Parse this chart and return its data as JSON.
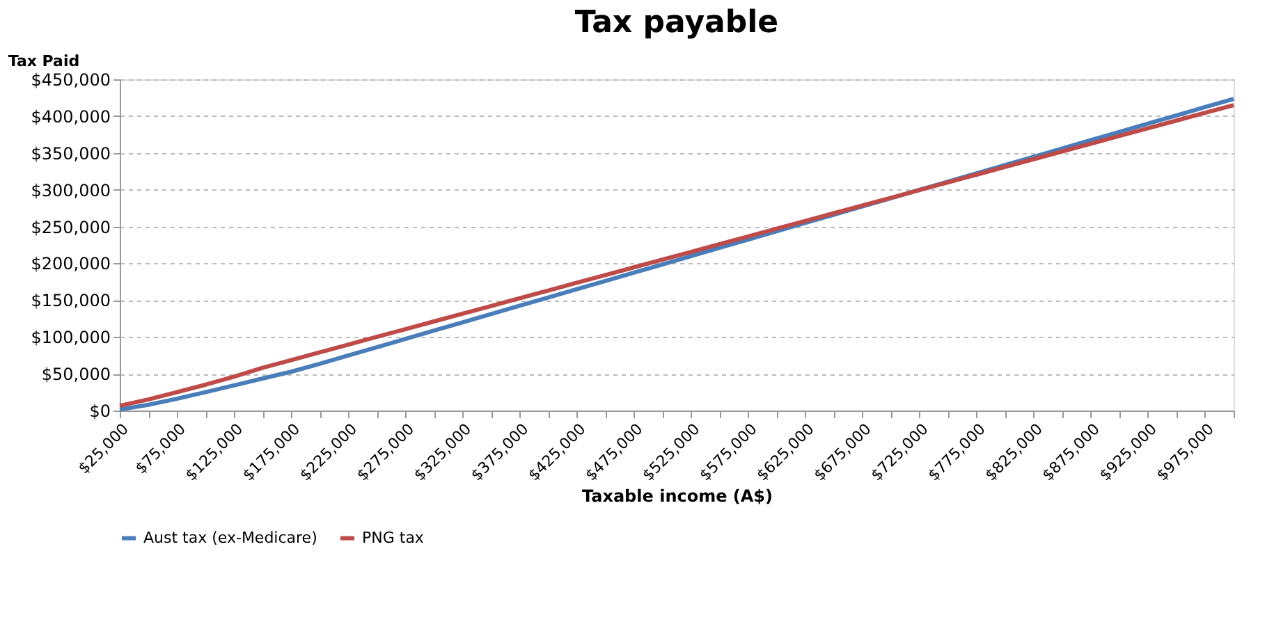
{
  "chart_data": {
    "type": "line",
    "title": "Tax payable",
    "xlabel": "Taxable income (A$)",
    "ylabel": "Tax Paid",
    "categories": [
      "$25,000",
      null,
      "$75,000",
      null,
      "$125,000",
      null,
      "$175,000",
      null,
      "$225,000",
      null,
      "$275,000",
      null,
      "$325,000",
      null,
      "$375,000",
      null,
      "$425,000",
      null,
      "$475,000",
      null,
      "$525,000",
      null,
      "$575,000",
      null,
      "$625,000",
      null,
      "$675,000",
      null,
      "$725,000",
      null,
      "$775,000",
      null,
      "$825,000",
      null,
      "$875,000",
      null,
      "$925,000",
      null,
      "$975,000",
      null
    ],
    "series": [
      {
        "name": "Aust tax (ex-Medicare)",
        "color": "#4a7ebb",
        "values": [
          1300,
          7800,
          15900,
          24900,
          34200,
          43500,
          52700,
          63500,
          74800,
          86000,
          97300,
          108500,
          119800,
          131000,
          142300,
          153500,
          164800,
          176000,
          187300,
          198500,
          209800,
          221000,
          232300,
          243500,
          254800,
          266000,
          277300,
          288500,
          299800,
          311000,
          322300,
          333500,
          344800,
          356000,
          367300,
          378500,
          389800,
          401000,
          412300,
          423500
        ]
      },
      {
        "name": "PNG tax",
        "color": "#be4b48",
        "values": [
          6500,
          15000,
          25000,
          35000,
          46000,
          58000,
          68500,
          79000,
          89500,
          100000,
          110500,
          121000,
          131500,
          142000,
          152500,
          163000,
          173500,
          184000,
          194500,
          205000,
          215500,
          226000,
          236500,
          247000,
          257500,
          268000,
          278500,
          289000,
          299500,
          310000,
          320500,
          331000,
          341500,
          352000,
          362500,
          373000,
          383500,
          394000,
          404500,
          415000
        ]
      }
    ],
    "ylim": [
      0,
      450000
    ],
    "yticks": [
      {
        "value": 0,
        "label": "$0"
      },
      {
        "value": 50000,
        "label": "$50,000"
      },
      {
        "value": 100000,
        "label": "$100,000"
      },
      {
        "value": 150000,
        "label": "$150,000"
      },
      {
        "value": 200000,
        "label": "$200,000"
      },
      {
        "value": 250000,
        "label": "$250,000"
      },
      {
        "value": 300000,
        "label": "$300,000"
      },
      {
        "value": 350000,
        "label": "$350,000"
      },
      {
        "value": 400000,
        "label": "$400,000"
      },
      {
        "value": 450000,
        "label": "$450,000"
      }
    ],
    "grid": "y",
    "legend": "bottom",
    "marker": "none",
    "line_style": "solid"
  }
}
